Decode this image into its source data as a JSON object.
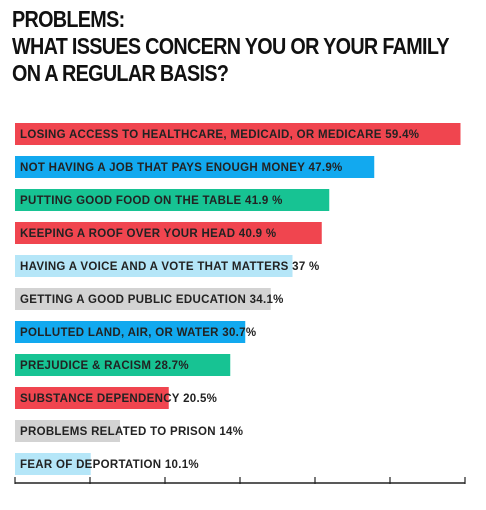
{
  "title_lines": [
    "PROBLEMS:",
    "WHAT ISSUES CONCERN YOU OR YOUR FAMILY",
    "ON A REGULAR BASIS?"
  ],
  "colors": {
    "red": "#f0454f",
    "blue": "#12a9ef",
    "green": "#17c393",
    "light_blue": "#b5e6f8",
    "gray": "#d3d3d3",
    "axis": "#222222"
  },
  "chart_data": {
    "type": "bar",
    "orientation": "horizontal",
    "title": "PROBLEMS: WHAT ISSUES CONCERN YOU OR YOUR FAMILY ON A REGULAR BASIS?",
    "xlim": [
      0,
      60
    ],
    "grid": false,
    "bars": [
      {
        "label": "LOSING ACCESS TO HEALTHCARE, MEDICAID, OR MEDICARE 59.4%",
        "value": 59.4,
        "color": "red"
      },
      {
        "label": "NOT HAVING A JOB THAT PAYS ENOUGH MONEY 47.9%",
        "value": 47.9,
        "color": "blue"
      },
      {
        "label": "PUTTING GOOD FOOD ON THE TABLE 41.9 %",
        "value": 41.9,
        "color": "green"
      },
      {
        "label": "KEEPING A ROOF OVER YOUR HEAD 40.9 %",
        "value": 40.9,
        "color": "red"
      },
      {
        "label": "HAVING A VOICE AND A VOTE THAT MATTERS 37 %",
        "value": 37,
        "color": "light_blue"
      },
      {
        "label": "GETTING A GOOD PUBLIC EDUCATION 34.1%",
        "value": 34.1,
        "color": "gray"
      },
      {
        "label": "POLLUTED LAND, AIR, OR WATER 30.7%",
        "value": 30.7,
        "color": "blue"
      },
      {
        "label": "PREJUDICE & RACISM 28.7%",
        "value": 28.7,
        "color": "green"
      },
      {
        "label": "SUBSTANCE DEPENDENCY 20.5%",
        "value": 20.5,
        "color": "red"
      },
      {
        "label": "PROBLEMS RELATED TO PRISON 14%",
        "value": 14,
        "color": "gray"
      },
      {
        "label": "FEAR OF DEPORTATION 10.1%",
        "value": 10.1,
        "color": "light_blue"
      }
    ]
  }
}
